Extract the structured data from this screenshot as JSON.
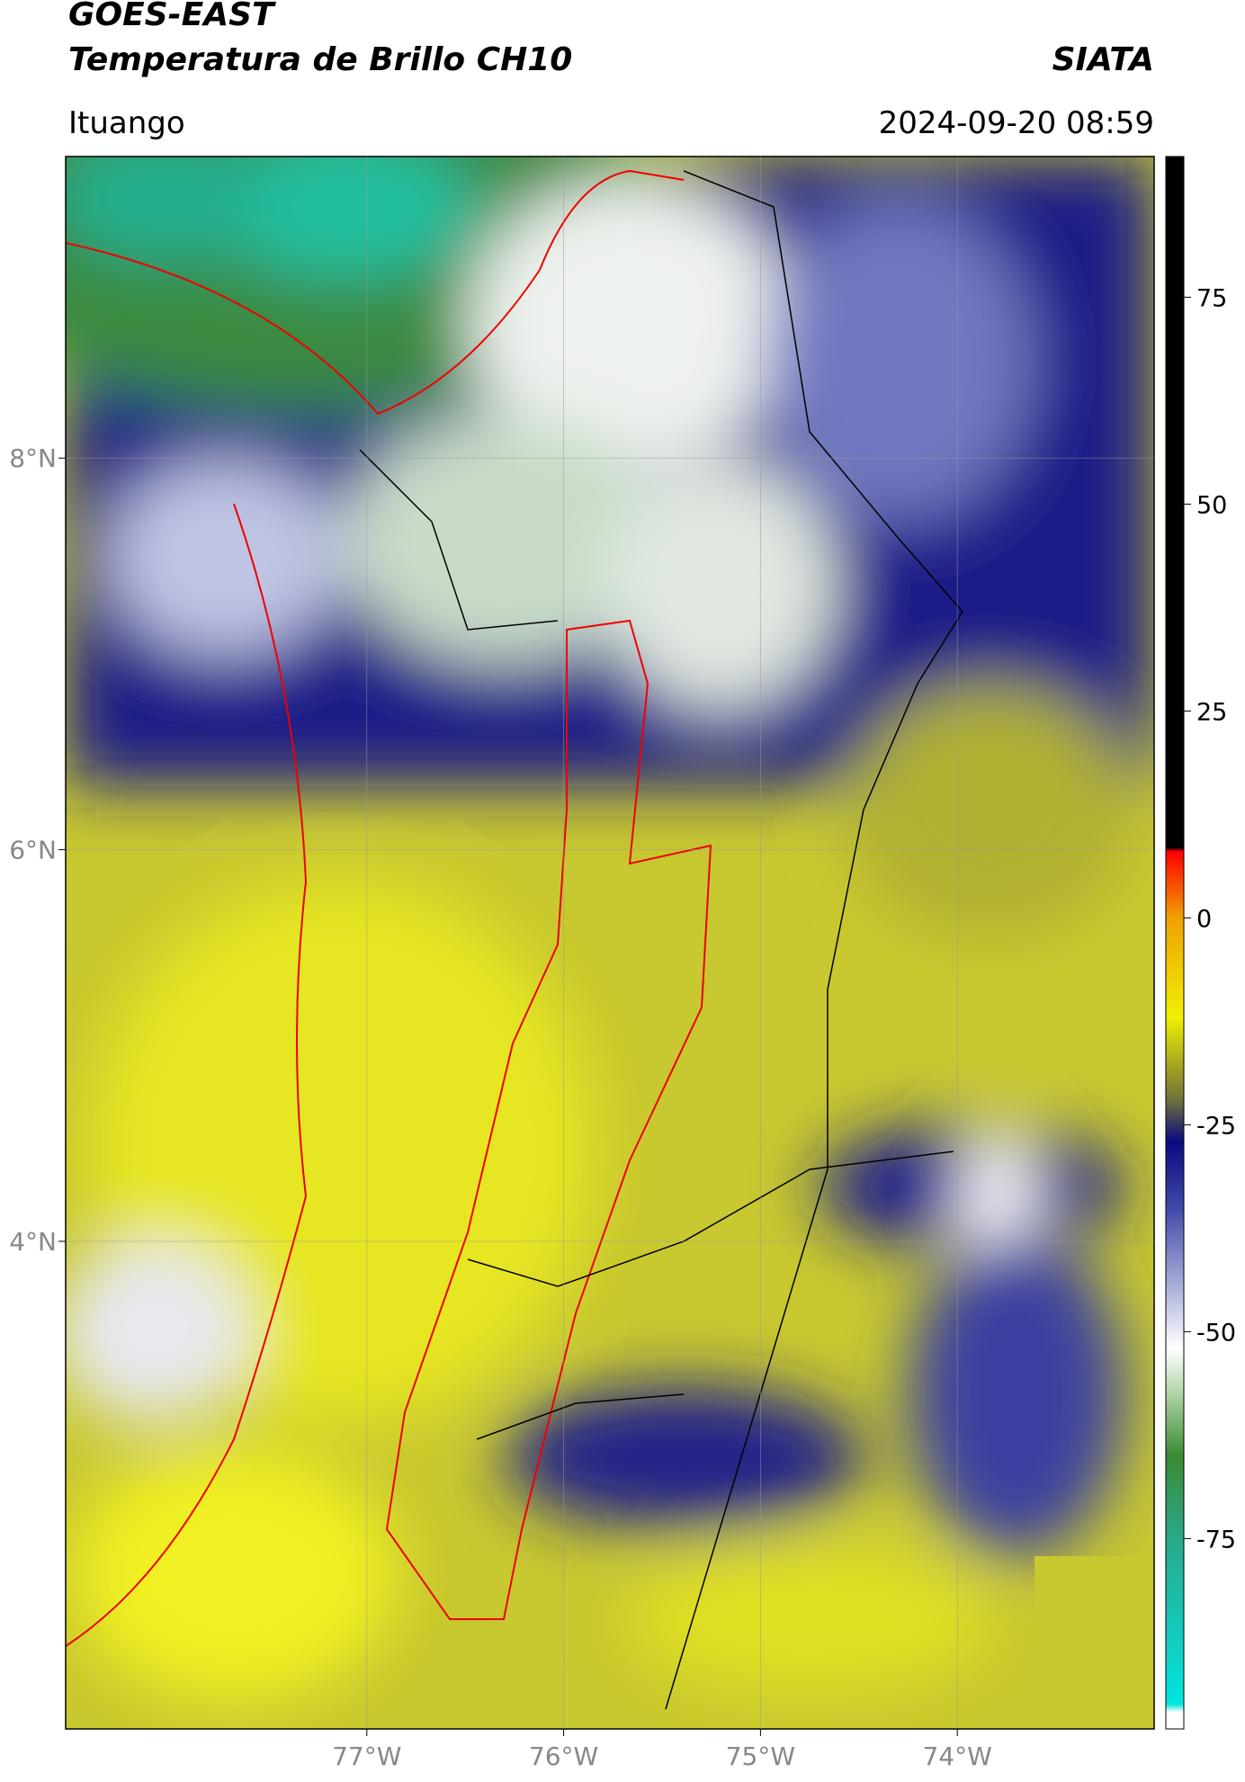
{
  "header": {
    "title": "GOES-EAST",
    "subtitle": "Temperatura de Brillo CH10",
    "brand": "SIATA",
    "location": "Ituango",
    "timestamp": "2024-09-20 08:59"
  },
  "map": {
    "lonlim": [
      -78.53,
      -73.0
    ],
    "latlim": [
      1.51,
      9.54
    ],
    "lonticks": [
      {
        "value": -77,
        "label": "77°W"
      },
      {
        "value": -76,
        "label": "76°W"
      },
      {
        "value": -75,
        "label": "75°W"
      },
      {
        "value": -74,
        "label": "74°W"
      }
    ],
    "latticks": [
      {
        "value": 8,
        "label": "8°N"
      },
      {
        "value": 6,
        "label": "6°N"
      },
      {
        "value": 4,
        "label": "4°N"
      }
    ],
    "grid": true
  },
  "colorbar": {
    "lim": [
      -98,
      92
    ],
    "ticks": [
      -75,
      -50,
      -25,
      0,
      25,
      50,
      75
    ],
    "colors": [
      {
        "value": -98,
        "color": "#ffffff"
      },
      {
        "value": -96,
        "color": "#ffffff"
      },
      {
        "value": -95,
        "color": "#00e5e0"
      },
      {
        "value": -75,
        "color": "#2aa88a"
      },
      {
        "value": -65,
        "color": "#3a8a30"
      },
      {
        "value": -57,
        "color": "#b8d8b0"
      },
      {
        "value": -52,
        "color": "#ffffff"
      },
      {
        "value": -45,
        "color": "#b0b4dc"
      },
      {
        "value": -35,
        "color": "#4048a8"
      },
      {
        "value": -27,
        "color": "#0a0a80"
      },
      {
        "value": -22,
        "color": "#70703a"
      },
      {
        "value": -12,
        "color": "#f0f000"
      },
      {
        "value": 0,
        "color": "#f0a000"
      },
      {
        "value": 8,
        "color": "#ff0000"
      },
      {
        "value": 8.5,
        "color": "#000000"
      },
      {
        "value": 92,
        "color": "#000000"
      }
    ]
  }
}
